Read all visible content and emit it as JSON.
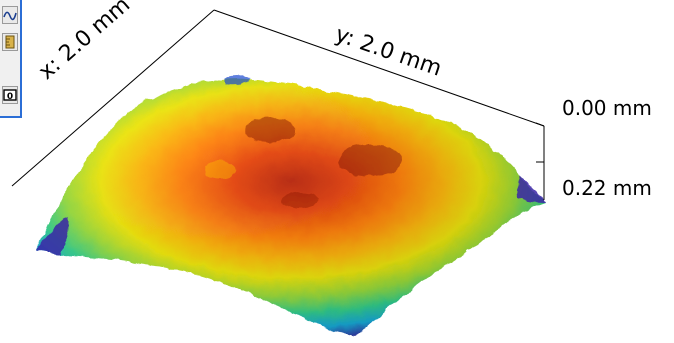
{
  "window": {
    "toolbar": {
      "tools": [
        {
          "icon": "wave-icon"
        },
        {
          "icon": "ruler-icon"
        },
        {
          "icon": "counter-icon"
        }
      ]
    }
  },
  "plot": {
    "axes": {
      "x_label": "x: 2.0 mm",
      "y_label": "y: 2.0 mm",
      "z_top_label": "0.00 mm",
      "z_bottom_label": "0.22 mm"
    },
    "colormap": [
      "#3b1fa8",
      "#1f6ad7",
      "#1fb9e3",
      "#2fd89a",
      "#9be23a",
      "#f2e900",
      "#ffb000",
      "#ff6d00",
      "#d61d00",
      "#8f1200"
    ]
  }
}
